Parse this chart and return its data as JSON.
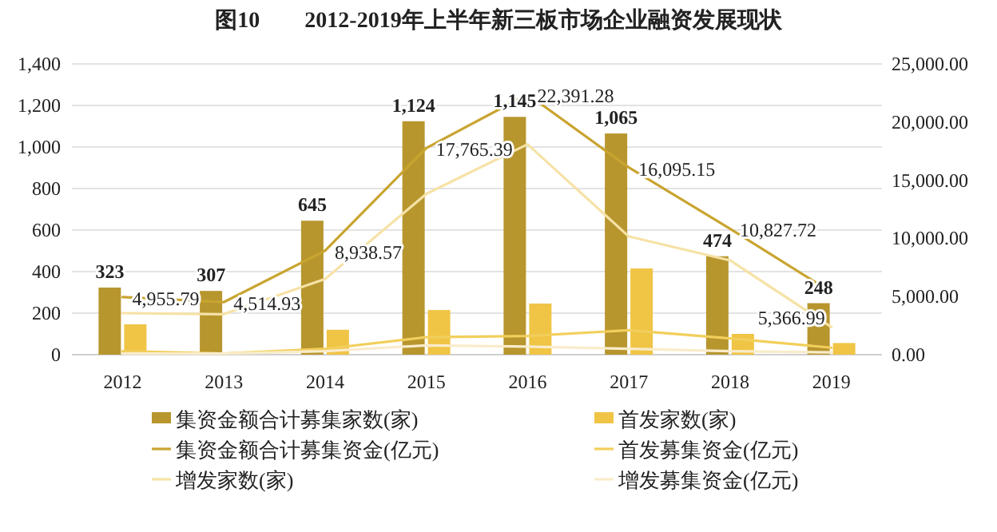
{
  "chart_data": {
    "type": "bar",
    "title": "图10　　2012-2019年上半年新三板市场企业融资发展现状",
    "categories": [
      "2012",
      "2013",
      "2014",
      "2015",
      "2016",
      "2017",
      "2018",
      "2019"
    ],
    "series": [
      {
        "name": "集资金额合计募集家数(家)",
        "color": "#b8962e",
        "values": [
          323,
          307,
          645,
          1124,
          1145,
          1065,
          474,
          248
        ],
        "value_labels": [
          "323",
          "307",
          "645",
          "1,124",
          "1,145",
          "1,065",
          "474",
          "248"
        ]
      },
      {
        "name": "首发家数(家)",
        "color": "#f0c445",
        "values": [
          146,
          null,
          120,
          215,
          246,
          415,
          100,
          56
        ]
      },
      {
        "name": "集资金额合计募集资金(亿元)",
        "type": "line",
        "axis": "y2",
        "color": "#c9a430",
        "values": [
          4955.79,
          4514.93,
          8938.57,
          17765.39,
          22391.28,
          16095.15,
          10827.72,
          5366.99
        ],
        "value_labels": [
          "4,955.79",
          "4,514.93",
          "8,938.57",
          "17,765.39",
          "22,391.28",
          "16,095.15",
          "10,827.72",
          "5,366.99"
        ]
      },
      {
        "name": "首发募集资金(亿元)",
        "type": "line",
        "axis": "y2",
        "color": "#f2cf5c",
        "values": [
          300,
          100,
          500,
          1500,
          1600,
          2100,
          1400,
          600
        ]
      },
      {
        "name": "增发家数(家)",
        "type": "line",
        "color": "#f6e2a6",
        "values": [
          200,
          195,
          364,
          774,
          1013,
          569,
          454,
          133
        ]
      },
      {
        "name": "增发募集资金(亿元)",
        "type": "line",
        "axis": "y2",
        "color": "#f9eccb",
        "values": [
          100,
          100,
          300,
          800,
          700,
          500,
          300,
          200
        ]
      }
    ],
    "ylim": [
      0,
      1400
    ],
    "yticks": [
      0,
      200,
      400,
      600,
      800,
      {
        "value": 1000,
        "label": "1,000"
      },
      {
        "value": 1200,
        "label": "1,200"
      },
      {
        "value": 1400,
        "label": "1,400"
      }
    ],
    "y2lim": [
      0,
      25000
    ],
    "y2ticks": [
      {
        "value": 0,
        "label": "0.00"
      },
      {
        "value": 5000,
        "label": "5,000.00"
      },
      {
        "value": 10000,
        "label": "10,000.00"
      },
      {
        "value": 15000,
        "label": "15,000.00"
      },
      {
        "value": 20000,
        "label": "20,000.00"
      },
      {
        "value": 25000,
        "label": "25,000.00"
      }
    ],
    "grid": "y",
    "legend": "bottom"
  }
}
